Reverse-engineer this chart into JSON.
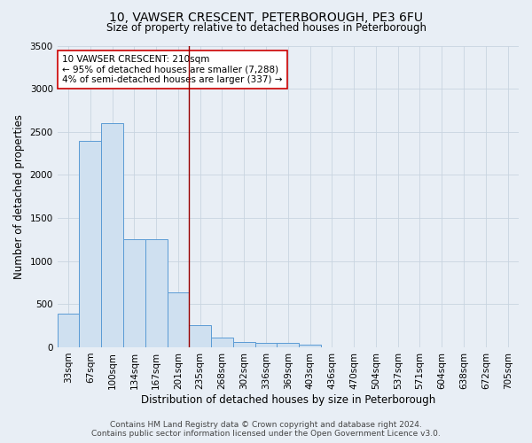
{
  "title": "10, VAWSER CRESCENT, PETERBOROUGH, PE3 6FU",
  "subtitle": "Size of property relative to detached houses in Peterborough",
  "xlabel": "Distribution of detached houses by size in Peterborough",
  "ylabel": "Number of detached properties",
  "footer_line1": "Contains HM Land Registry data © Crown copyright and database right 2024.",
  "footer_line2": "Contains public sector information licensed under the Open Government Licence v3.0.",
  "categories": [
    "33sqm",
    "67sqm",
    "100sqm",
    "134sqm",
    "167sqm",
    "201sqm",
    "235sqm",
    "268sqm",
    "302sqm",
    "336sqm",
    "369sqm",
    "403sqm",
    "436sqm",
    "470sqm",
    "504sqm",
    "537sqm",
    "571sqm",
    "604sqm",
    "638sqm",
    "672sqm",
    "705sqm"
  ],
  "values": [
    390,
    2390,
    2600,
    1250,
    1250,
    640,
    260,
    110,
    60,
    55,
    50,
    35,
    0,
    0,
    0,
    0,
    0,
    0,
    0,
    0,
    0
  ],
  "bar_color": "#cfe0f0",
  "bar_edge_color": "#5b9bd5",
  "grid_color": "#c8d4e0",
  "background_color": "#e8eef5",
  "vline_x": 5.5,
  "vline_color": "#990000",
  "annotation_text": "10 VAWSER CRESCENT: 210sqm\n← 95% of detached houses are smaller (7,288)\n4% of semi-detached houses are larger (337) →",
  "annotation_box_facecolor": "white",
  "annotation_box_edgecolor": "#cc0000",
  "ylim_max": 3500,
  "yticks": [
    0,
    500,
    1000,
    1500,
    2000,
    2500,
    3000,
    3500
  ],
  "title_fontsize": 10,
  "subtitle_fontsize": 8.5,
  "axis_label_fontsize": 8.5,
  "tick_fontsize": 7.5,
  "annotation_fontsize": 7.5,
  "footer_fontsize": 6.5
}
